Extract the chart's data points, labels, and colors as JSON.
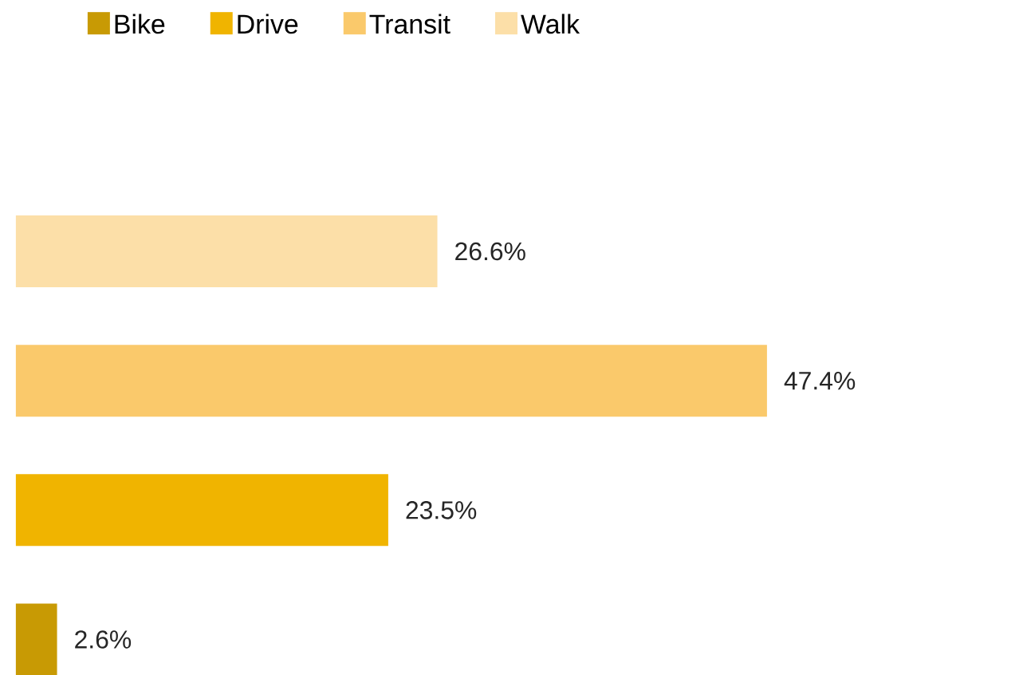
{
  "chart_data": {
    "type": "bar",
    "orientation": "horizontal",
    "stacked": true,
    "categories": [
      null,
      null,
      null,
      null
    ],
    "legend": "top",
    "series": [
      {
        "name": "Bike",
        "color": "#c89a04",
        "values": [
          null,
          null,
          null,
          2.6
        ],
        "value_labels": [
          null,
          null,
          null,
          "2.6%"
        ]
      },
      {
        "name": "Drive",
        "color": "#f0b400",
        "values": [
          null,
          null,
          23.5,
          null
        ],
        "value_labels": [
          null,
          null,
          "23.5%",
          null
        ]
      },
      {
        "name": "Transit",
        "color": "#fac96b",
        "values": [
          null,
          47.4,
          null,
          null
        ],
        "value_labels": [
          null,
          "47.4%",
          null,
          null
        ]
      },
      {
        "name": "Walk",
        "color": "#fcdfa8",
        "values": [
          26.6,
          null,
          null,
          null
        ],
        "value_labels": [
          "26.6%",
          null,
          null,
          null
        ]
      }
    ]
  }
}
